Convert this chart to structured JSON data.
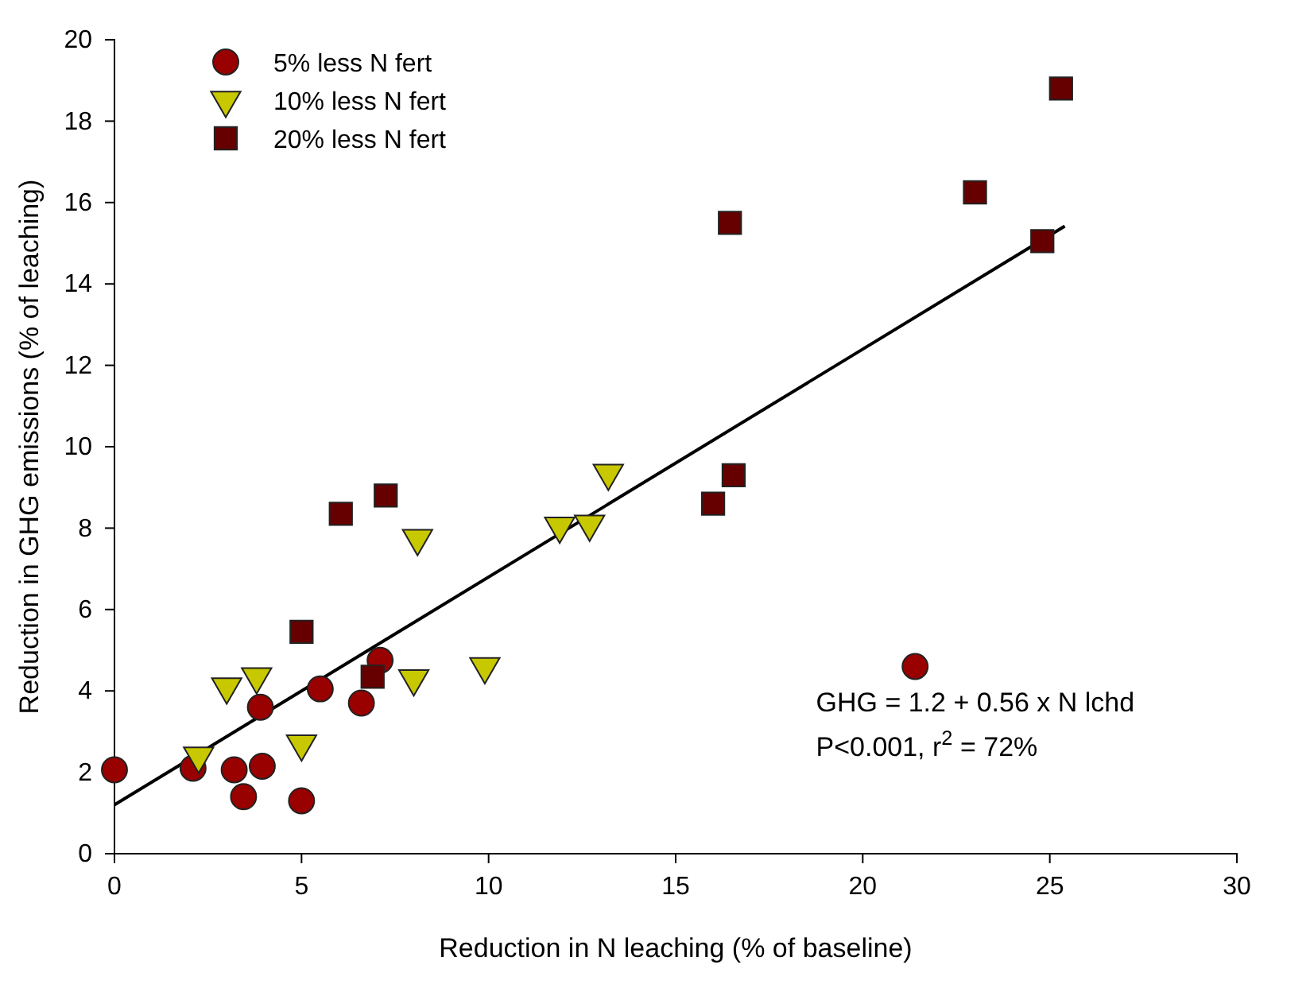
{
  "chart_data": {
    "type": "scatter",
    "xlabel": "Reduction in N leaching (% of baseline)",
    "ylabel": "Reduction in GHG emissions (% of leaching)",
    "xlim": [
      0,
      30
    ],
    "xticks": [
      0,
      5,
      10,
      15,
      20,
      25,
      30
    ],
    "ylim": [
      0,
      20
    ],
    "yticks": [
      0,
      2,
      4,
      6,
      8,
      10,
      12,
      14,
      16,
      18,
      20
    ],
    "grid": false,
    "legend": "top left",
    "series": [
      {
        "name": "5% less N fert",
        "color": "#990000",
        "marker": "circle",
        "x": [
          0,
          2.1,
          3.2,
          3.45,
          3.95,
          3.9,
          5.0,
          5.5,
          6.6,
          7.1,
          21.4
        ],
        "values": [
          2.06,
          2.1,
          2.06,
          1.4,
          2.15,
          3.6,
          1.3,
          4.05,
          3.7,
          4.75,
          4.6
        ]
      },
      {
        "name": "10% less N fert",
        "color": "#c8c800",
        "marker": "triangle",
        "x": [
          2.25,
          3.0,
          3.8,
          5.0,
          8.1,
          8.0,
          9.9,
          11.9,
          12.7,
          13.2
        ],
        "values": [
          2.4,
          4.1,
          4.35,
          2.7,
          7.75,
          4.3,
          4.6,
          8.05,
          8.1,
          9.35
        ]
      },
      {
        "name": "20% less N fert",
        "color": "#660000",
        "marker": "square",
        "x": [
          5.0,
          6.05,
          7.25,
          6.9,
          16.0,
          16.55,
          16.45,
          23.0,
          24.8,
          25.3
        ],
        "values": [
          5.45,
          8.35,
          8.8,
          4.35,
          8.6,
          9.3,
          15.5,
          16.25,
          15.05,
          18.8
        ]
      },
      {
        "type": "line",
        "color": "#000000",
        "marker": "none",
        "line_style": "solid",
        "x": [
          0,
          25.4
        ],
        "values": [
          1.2,
          15.42
        ]
      }
    ],
    "annotations": [
      "GHG = 1.2 + 0.56 x N lchd",
      "P<0.001, r$^{2}$ = 72%"
    ]
  }
}
